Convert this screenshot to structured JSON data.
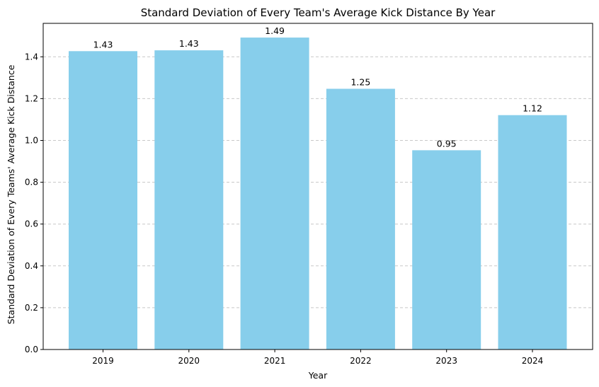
{
  "chart_data": {
    "type": "bar",
    "title": "Standard Deviation of Every Team's Average Kick Distance By Year",
    "xlabel": "Year",
    "ylabel": "Standard Deviation of Every Teams' Average Kick Distance",
    "categories": [
      "2019",
      "2020",
      "2021",
      "2022",
      "2023",
      "2024"
    ],
    "values": [
      1.427,
      1.431,
      1.492,
      1.247,
      0.953,
      1.121
    ],
    "data_labels": [
      "1.43",
      "1.43",
      "1.49",
      "1.25",
      "0.95",
      "1.12"
    ],
    "ylim": [
      0,
      1.56
    ],
    "yticks": [
      0.0,
      0.2,
      0.4,
      0.6,
      0.8,
      1.0,
      1.2,
      1.4
    ],
    "ytick_labels": [
      "0.0",
      "0.2",
      "0.4",
      "0.6",
      "0.8",
      "1.0",
      "1.2",
      "1.4"
    ],
    "grid": "y-axis dashed",
    "legend": "none",
    "bar_color": "#87CEEB",
    "grid_color": "#c8c8c8"
  }
}
